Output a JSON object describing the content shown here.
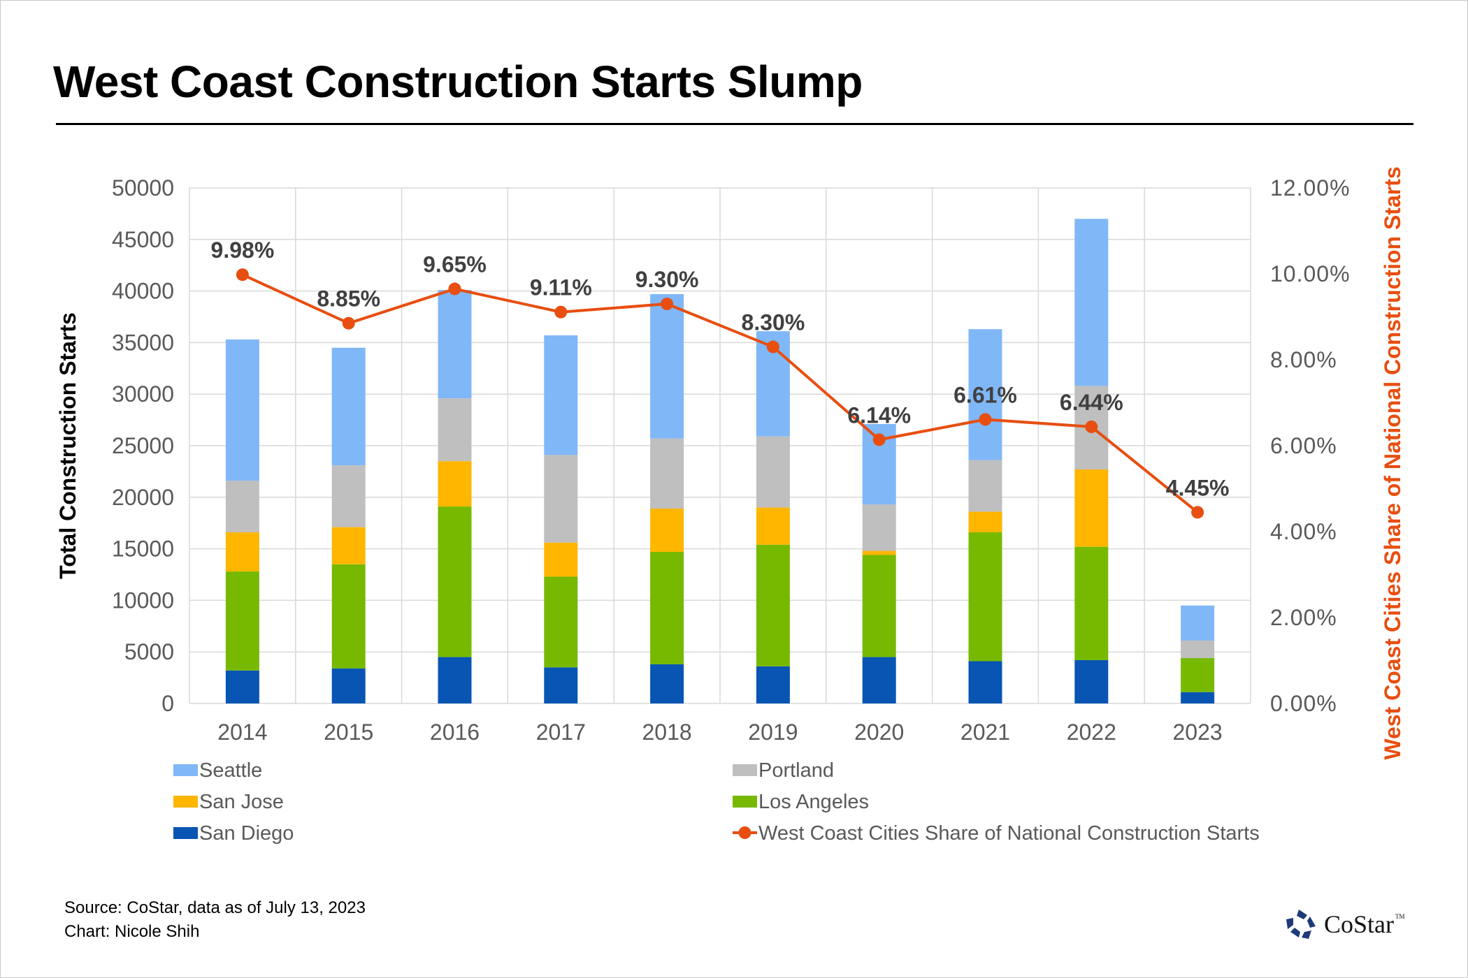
{
  "page": {
    "title": "West Coast Construction Starts Slump",
    "footer": {
      "source": "Source: CoStar, data as of July 13, 2023",
      "credit": "Chart: Nicole Shih"
    },
    "logo": {
      "text": "CoStar",
      "tm": "TM",
      "icon": "costar-star-icon"
    }
  },
  "chart_data": {
    "type": "bar",
    "subtype": "stacked-bar-with-line-secondary-axis",
    "title": "West Coast Construction Starts Slump",
    "categories": [
      "2014",
      "2015",
      "2016",
      "2017",
      "2018",
      "2019",
      "2020",
      "2021",
      "2022",
      "2023"
    ],
    "xlabel": "",
    "ylabel": "Total Construction Starts",
    "ylabel_right": "West Coast Cities Share of National Construction Starts",
    "ylim": [
      0,
      50000
    ],
    "yticks": [
      "0",
      "5000",
      "10000",
      "15000",
      "20000",
      "25000",
      "30000",
      "35000",
      "40000",
      "45000",
      "50000"
    ],
    "ylim_right": [
      0,
      12
    ],
    "yticks_right": [
      "0.00%",
      "2.00%",
      "4.00%",
      "6.00%",
      "8.00%",
      "10.00%",
      "12.00%"
    ],
    "grid": true,
    "legend_position": "bottom",
    "stack_order_bottom_to_top": [
      "San Diego",
      "Los Angeles",
      "San Jose",
      "Portland",
      "Seattle"
    ],
    "series": [
      {
        "name": "San Diego",
        "type": "bar",
        "color": "#0855B3",
        "values": [
          3200,
          3400,
          4500,
          3500,
          3800,
          3600,
          4500,
          4100,
          4200,
          1100
        ]
      },
      {
        "name": "Los Angeles",
        "type": "bar",
        "color": "#76B900",
        "values": [
          9600,
          10100,
          14600,
          8800,
          10900,
          11800,
          9900,
          12500,
          11000,
          3300
        ]
      },
      {
        "name": "San Jose",
        "type": "bar",
        "color": "#FFB600",
        "values": [
          3800,
          3600,
          4400,
          3300,
          4200,
          3600,
          400,
          2000,
          7500,
          0
        ]
      },
      {
        "name": "Portland",
        "type": "bar",
        "color": "#BFBFBF",
        "values": [
          5000,
          6000,
          6100,
          8500,
          6800,
          6900,
          4500,
          5000,
          8100,
          1700
        ]
      },
      {
        "name": "Seattle",
        "type": "bar",
        "color": "#80B7F7",
        "values": [
          13700,
          11400,
          10500,
          11600,
          14000,
          10200,
          7800,
          12700,
          16200,
          3400
        ]
      },
      {
        "name": "West Coast Cities Share of National Construction Starts",
        "type": "line",
        "axis": "right",
        "color": "#E84E0F",
        "values": [
          9.98,
          8.85,
          9.65,
          9.11,
          9.3,
          8.3,
          6.14,
          6.61,
          6.44,
          4.45
        ],
        "labels": [
          "9.98%",
          "8.85%",
          "9.65%",
          "9.11%",
          "9.30%",
          "8.30%",
          "6.14%",
          "6.61%",
          "6.44%",
          "4.45%"
        ]
      }
    ],
    "legend": [
      {
        "name": "Seattle",
        "marker": "square",
        "color": "#80B7F7"
      },
      {
        "name": "Portland",
        "marker": "square",
        "color": "#BFBFBF"
      },
      {
        "name": "San Jose",
        "marker": "square",
        "color": "#FFB600"
      },
      {
        "name": "Los Angeles",
        "marker": "square",
        "color": "#76B900"
      },
      {
        "name": "San Diego",
        "marker": "square",
        "color": "#0855B3"
      },
      {
        "name": "West Coast Cities Share of National Construction Starts",
        "marker": "line-dot",
        "color": "#E84E0F"
      }
    ]
  }
}
